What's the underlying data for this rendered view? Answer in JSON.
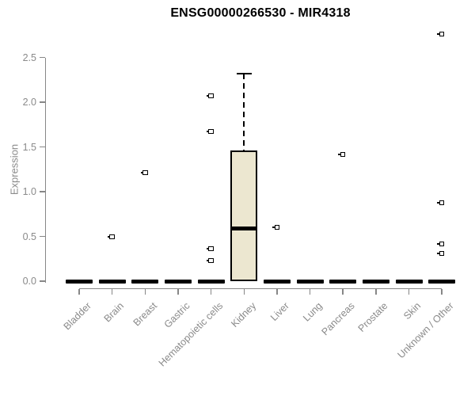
{
  "title": "ENSG00000266530 - MIR4318",
  "chart_data": {
    "type": "boxplot",
    "title": "ENSG00000266530 - MIR4318",
    "xlabel": "",
    "ylabel": "Expression",
    "yticks": [
      0.0,
      0.5,
      1.0,
      1.5,
      2.0,
      2.5
    ],
    "ylim": [
      0.0,
      2.85
    ],
    "grid": false,
    "legend_position": "none",
    "x_tick_rotation": 45,
    "categories": [
      "Bladder",
      "Brain",
      "Breast",
      "Gastric",
      "Hematopoietic cells",
      "Kidney",
      "Liver",
      "Lung",
      "Pancreas",
      "Prostate",
      "Skin",
      "Unknown / Other"
    ],
    "series": [
      {
        "category": "Bladder",
        "q1": 0,
        "median": 0,
        "q3": 0,
        "whisker_low": 0,
        "whisker_high": 0,
        "outliers": []
      },
      {
        "category": "Brain",
        "q1": 0,
        "median": 0,
        "q3": 0,
        "whisker_low": 0,
        "whisker_high": 0,
        "outliers": [
          0.5
        ]
      },
      {
        "category": "Breast",
        "q1": 0,
        "median": 0,
        "q3": 0,
        "whisker_low": 0,
        "whisker_high": 0,
        "outliers": [
          1.21
        ]
      },
      {
        "category": "Gastric",
        "q1": 0,
        "median": 0,
        "q3": 0,
        "whisker_low": 0,
        "whisker_high": 0,
        "outliers": []
      },
      {
        "category": "Hematopoietic cells",
        "q1": 0,
        "median": 0,
        "q3": 0,
        "whisker_low": 0,
        "whisker_high": 0,
        "outliers": [
          2.07,
          1.67,
          0.36,
          0.23
        ]
      },
      {
        "category": "Kidney",
        "q1": 0,
        "median": 0.59,
        "q3": 1.46,
        "whisker_low": 0,
        "whisker_high": 2.32,
        "outliers": []
      },
      {
        "category": "Liver",
        "q1": 0,
        "median": 0,
        "q3": 0,
        "whisker_low": 0,
        "whisker_high": 0,
        "outliers": [
          0.6
        ]
      },
      {
        "category": "Lung",
        "q1": 0,
        "median": 0,
        "q3": 0,
        "whisker_low": 0,
        "whisker_high": 0,
        "outliers": []
      },
      {
        "category": "Pancreas",
        "q1": 0,
        "median": 0,
        "q3": 0,
        "whisker_low": 0,
        "whisker_high": 0,
        "outliers": [
          1.42
        ]
      },
      {
        "category": "Prostate",
        "q1": 0,
        "median": 0,
        "q3": 0,
        "whisker_low": 0,
        "whisker_high": 0,
        "outliers": []
      },
      {
        "category": "Skin",
        "q1": 0,
        "median": 0,
        "q3": 0,
        "whisker_low": 0,
        "whisker_high": 0,
        "outliers": []
      },
      {
        "category": "Unknown / Other",
        "q1": 0,
        "median": 0,
        "q3": 0,
        "whisker_low": 0,
        "whisker_high": 0,
        "outliers": [
          2.76,
          0.88,
          0.42,
          0.31
        ]
      }
    ],
    "colors": {
      "box_fill": "#ece7d0",
      "box_stroke": "#000000",
      "axis": "#878787",
      "tick_label": "#8a8a8a",
      "title": "#000000",
      "background": "#ffffff"
    }
  }
}
